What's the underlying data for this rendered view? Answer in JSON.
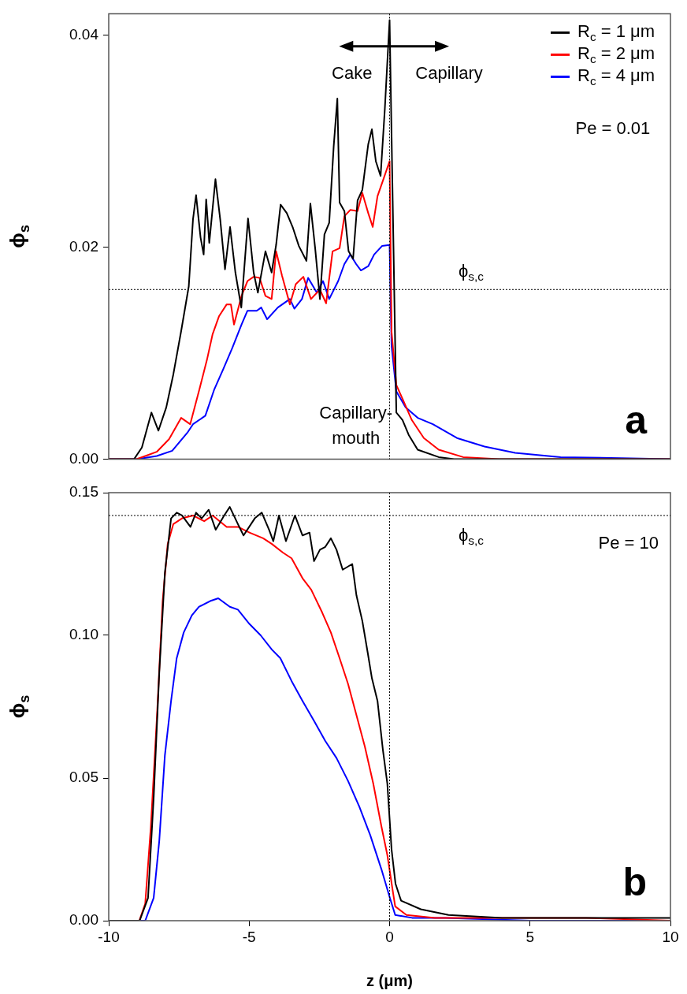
{
  "chart_data": [
    {
      "type": "line",
      "title": "a",
      "ylabel": "ϕ$_{s}$",
      "xlim": [
        -10,
        10
      ],
      "ylim": [
        0,
        0.042
      ],
      "xticks": [
        -10,
        -5,
        0,
        5,
        10
      ],
      "yticks": [
        {
          "value": 0,
          "label": "0.00"
        },
        {
          "value": 0.02,
          "label": "0.02"
        },
        {
          "value": 0.04,
          "label": "0.04"
        }
      ],
      "tick_labels": "y",
      "legend": "top right",
      "annotations": [
        "Cake",
        "Capillary",
        "Capillary-\nmouth",
        "Pe = 0.01"
      ],
      "ref_lines": [
        {
          "axis": "y",
          "value": 0.016,
          "label": "ϕ$_{s,c}$"
        },
        {
          "axis": "x",
          "value": 0
        }
      ],
      "series": [
        {
          "name": "R$_{c}$ = 1 μm",
          "color": "#000000",
          "x": [
            -10,
            -9.1,
            -8.82,
            -8.48,
            -8.23,
            -7.95,
            -7.7,
            -7.42,
            -7.15,
            -7.0,
            -6.89,
            -6.73,
            -6.62,
            -6.53,
            -6.42,
            -6.2,
            -6.03,
            -5.86,
            -5.68,
            -5.49,
            -5.28,
            -5.04,
            -4.84,
            -4.69,
            -4.42,
            -4.2,
            -4.04,
            -3.88,
            -3.66,
            -3.44,
            -3.23,
            -2.96,
            -2.82,
            -2.65,
            -2.48,
            -2.32,
            -2.15,
            -1.99,
            -1.86,
            -1.78,
            -1.61,
            -1.46,
            -1.3,
            -1.14,
            -0.97,
            -0.76,
            -0.63,
            -0.49,
            -0.32,
            -0.17,
            0,
            0.24,
            0.46,
            0.68,
            1.0,
            1.75,
            2.3,
            10
          ],
          "values": [
            0,
            0,
            0.0011,
            0.0044,
            0.0027,
            0.0049,
            0.008,
            0.0121,
            0.0163,
            0.0226,
            0.0249,
            0.0209,
            0.0193,
            0.0245,
            0.0204,
            0.0264,
            0.0226,
            0.0179,
            0.0219,
            0.0176,
            0.0143,
            0.0227,
            0.0176,
            0.0157,
            0.0196,
            0.0176,
            0.0202,
            0.024,
            0.0232,
            0.0218,
            0.0201,
            0.0187,
            0.0241,
            0.0199,
            0.0151,
            0.0212,
            0.0223,
            0.0295,
            0.034,
            0.0242,
            0.0234,
            0.0196,
            0.0189,
            0.0244,
            0.0254,
            0.0297,
            0.0311,
            0.0281,
            0.0267,
            0.033,
            0.0414,
            0.0044,
            0.0037,
            0.0023,
            0.0009,
            0.0002,
            0,
            0
          ]
        },
        {
          "name": "R$_{c}$ = 2 μm",
          "color": "#ff0000",
          "x": [
            -10,
            -9.03,
            -8.6,
            -8.29,
            -7.85,
            -7.42,
            -7.1,
            -6.77,
            -6.5,
            -6.3,
            -6.07,
            -5.8,
            -5.65,
            -5.54,
            -5.27,
            -5.06,
            -4.84,
            -4.63,
            -4.42,
            -4.2,
            -4.04,
            -3.83,
            -3.55,
            -3.34,
            -3.07,
            -2.8,
            -2.48,
            -2.26,
            -2.03,
            -1.78,
            -1.61,
            -1.4,
            -1.14,
            -0.97,
            -0.76,
            -0.6,
            -0.43,
            -0.22,
            0,
            0.07,
            0.24,
            0.46,
            0.79,
            1.22,
            1.75,
            2.62,
            3.9,
            10
          ],
          "values": [
            0,
            0,
            0.0004,
            0.0007,
            0.0019,
            0.0039,
            0.0033,
            0.0066,
            0.0094,
            0.0118,
            0.0135,
            0.0146,
            0.0146,
            0.0127,
            0.0154,
            0.0168,
            0.0172,
            0.0171,
            0.0154,
            0.0151,
            0.0196,
            0.0173,
            0.0146,
            0.0165,
            0.0172,
            0.0151,
            0.016,
            0.0147,
            0.0196,
            0.0199,
            0.0229,
            0.0235,
            0.0234,
            0.0251,
            0.0232,
            0.0219,
            0.0248,
            0.0264,
            0.0281,
            0.012,
            0.007,
            0.0057,
            0.0037,
            0.002,
            0.0009,
            0.0002,
            0,
            0
          ]
        },
        {
          "name": "R$_{c}$ = 4 μm",
          "color": "#0000ff",
          "x": [
            -10,
            -9.0,
            -8.29,
            -7.74,
            -7.2,
            -7.0,
            -6.56,
            -6.24,
            -5.92,
            -5.6,
            -5.27,
            -5.06,
            -4.73,
            -4.57,
            -4.36,
            -3.98,
            -3.55,
            -3.39,
            -3.12,
            -2.9,
            -2.59,
            -2.37,
            -2.15,
            -1.83,
            -1.61,
            -1.4,
            -1.19,
            -1.02,
            -0.76,
            -0.55,
            -0.27,
            0,
            0.07,
            0.24,
            0.57,
            1.0,
            1.54,
            2.4,
            3.38,
            4.47,
            6.09,
            8.26,
            10
          ],
          "values": [
            0,
            0,
            0.0003,
            0.0008,
            0.0025,
            0.0033,
            0.0041,
            0.0066,
            0.0085,
            0.0105,
            0.0127,
            0.014,
            0.014,
            0.0143,
            0.0132,
            0.0143,
            0.0151,
            0.0142,
            0.0151,
            0.0171,
            0.0157,
            0.0168,
            0.0151,
            0.0168,
            0.0184,
            0.0193,
            0.0184,
            0.0178,
            0.0182,
            0.0193,
            0.0201,
            0.0202,
            0.0107,
            0.0064,
            0.0049,
            0.0039,
            0.0033,
            0.002,
            0.0012,
            0.0006,
            0.0002,
            0.0001,
            0
          ]
        }
      ]
    },
    {
      "type": "line",
      "title": "b",
      "xlabel": "z (μm)",
      "ylabel": "ϕ$_{s}$",
      "xlim": [
        -10,
        10
      ],
      "ylim": [
        0,
        0.15
      ],
      "xticks": [
        -10,
        -5,
        0,
        5,
        10
      ],
      "yticks": [
        {
          "value": 0,
          "label": "0.00"
        },
        {
          "value": 0.05,
          "label": "0.05"
        },
        {
          "value": 0.1,
          "label": "0.10"
        },
        {
          "value": 0.15,
          "label": "0.15"
        }
      ],
      "annotations": [
        "Pe = 10"
      ],
      "ref_lines": [
        {
          "axis": "y",
          "value": 0.142,
          "label": "ϕ$_{s,c}$"
        },
        {
          "axis": "x",
          "value": 0
        }
      ],
      "series": [
        {
          "color": "#000000",
          "x": [
            -10,
            -8.9,
            -8.6,
            -8.4,
            -8.2,
            -8.0,
            -7.78,
            -7.58,
            -7.39,
            -7.09,
            -6.89,
            -6.69,
            -6.44,
            -6.19,
            -5.89,
            -5.69,
            -5.4,
            -5.2,
            -4.8,
            -4.55,
            -4.29,
            -4.14,
            -3.94,
            -3.69,
            -3.37,
            -3.1,
            -2.85,
            -2.69,
            -2.48,
            -2.29,
            -2.09,
            -1.89,
            -1.67,
            -1.33,
            -1.18,
            -0.97,
            -0.78,
            -0.63,
            -0.43,
            -0.24,
            -0.08,
            0.07,
            0.21,
            0.41,
            1.11,
            2.1,
            4,
            6,
            8,
            10
          ],
          "values": [
            0,
            0,
            0.008,
            0.043,
            0.087,
            0.122,
            0.141,
            0.143,
            0.142,
            0.138,
            0.143,
            0.141,
            0.144,
            0.137,
            0.142,
            0.145,
            0.139,
            0.135,
            0.141,
            0.143,
            0.137,
            0.133,
            0.142,
            0.133,
            0.142,
            0.135,
            0.136,
            0.126,
            0.13,
            0.131,
            0.134,
            0.13,
            0.123,
            0.125,
            0.114,
            0.105,
            0.094,
            0.085,
            0.077,
            0.06,
            0.048,
            0.025,
            0.013,
            0.007,
            0.004,
            0.002,
            0.001,
            0.001,
            0.001,
            0.001
          ]
        },
        {
          "color": "#ff0000",
          "x": [
            -10,
            -8.91,
            -8.7,
            -8.5,
            -8.28,
            -8.08,
            -7.9,
            -7.7,
            -7.39,
            -7.0,
            -6.6,
            -6.3,
            -5.8,
            -5.4,
            -4.99,
            -4.5,
            -4.19,
            -3.8,
            -3.49,
            -3.1,
            -2.79,
            -2.4,
            -2.09,
            -1.78,
            -1.48,
            -1.18,
            -0.88,
            -0.58,
            -0.29,
            -0.08,
            0.12,
            0.2,
            0.6,
            1.61,
            4,
            7,
            10
          ],
          "values": [
            0,
            0,
            0.006,
            0.033,
            0.072,
            0.112,
            0.132,
            0.139,
            0.141,
            0.142,
            0.14,
            0.142,
            0.138,
            0.138,
            0.136,
            0.134,
            0.132,
            0.129,
            0.127,
            0.12,
            0.116,
            0.108,
            0.101,
            0.092,
            0.083,
            0.072,
            0.061,
            0.048,
            0.033,
            0.023,
            0.01,
            0.005,
            0.002,
            0.001,
            0.001,
            0.001,
            0
          ]
        },
        {
          "color": "#0000ff",
          "x": [
            -10,
            -8.7,
            -8.4,
            -8.2,
            -8.0,
            -7.78,
            -7.58,
            -7.33,
            -7.04,
            -6.79,
            -6.39,
            -6.1,
            -5.69,
            -5.4,
            -4.99,
            -4.59,
            -4.19,
            -3.89,
            -3.49,
            -3.1,
            -2.69,
            -2.29,
            -1.89,
            -1.48,
            -1.08,
            -0.69,
            -0.29,
            0.01,
            0.2,
            0.8,
            2,
            5,
            10
          ],
          "values": [
            0,
            0,
            0.008,
            0.028,
            0.058,
            0.077,
            0.092,
            0.101,
            0.107,
            0.11,
            0.112,
            0.113,
            0.11,
            0.109,
            0.104,
            0.1,
            0.095,
            0.092,
            0.084,
            0.077,
            0.07,
            0.063,
            0.057,
            0.049,
            0.04,
            0.03,
            0.018,
            0.008,
            0.002,
            0.001,
            0.001,
            0,
            0
          ]
        }
      ]
    }
  ]
}
